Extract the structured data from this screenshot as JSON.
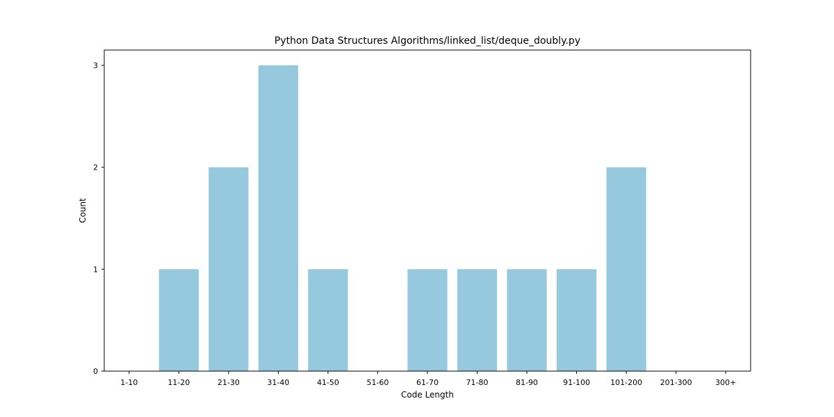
{
  "chart_data": {
    "type": "bar",
    "title": "Python Data Structures Algorithms/linked_list/deque_doubly.py",
    "xlabel": "Code Length",
    "ylabel": "Count",
    "categories": [
      "1-10",
      "11-20",
      "21-30",
      "31-40",
      "41-50",
      "51-60",
      "61-70",
      "71-80",
      "81-90",
      "91-100",
      "101-200",
      "201-300",
      "300+"
    ],
    "values": [
      0,
      1,
      2,
      3,
      1,
      0,
      1,
      1,
      1,
      1,
      2,
      0,
      0
    ],
    "yticks": [
      0,
      1,
      2,
      3
    ],
    "ylim": [
      0,
      3.15
    ],
    "grid": false,
    "bar_color": "#96c9dd"
  }
}
